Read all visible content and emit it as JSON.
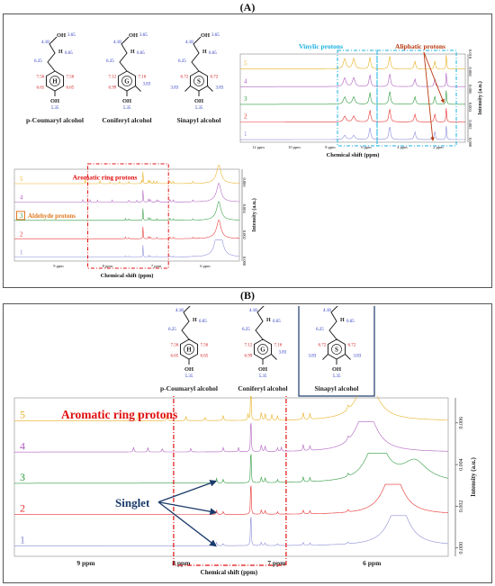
{
  "panel_a": {
    "label": "(A)",
    "structures": [
      {
        "name": "p-Coumaryl alcohol",
        "ring_letter": "H",
        "oh_shift": "5.35",
        "h_ch2": "4.18",
        "oh_alc": "3.65",
        "h_vinyl1": "6.25",
        "h_vinyl2": "6.65",
        "ring_left_top": "7.56",
        "ring_right_top": "7.56",
        "ring_left_bottom": "6.65",
        "ring_right_bottom": "6.65"
      },
      {
        "name": "Coniferyl alcohol",
        "ring_letter": "G",
        "oh_shift": "5.35",
        "h_ch2": "4.18",
        "oh_alc": "3.65",
        "h_vinyl1": "6.25",
        "h_vinyl2": "6.65",
        "ring_left_top": "7.12",
        "ring_right_top": "7.16",
        "ring_left_bottom": "6.99",
        "ome": "3.83"
      },
      {
        "name": "Sinapyl alcohol",
        "ring_letter": "S",
        "oh_shift": "5.35",
        "h_ch2": "4.18",
        "oh_alc": "3.65",
        "h_vinyl1": "6.25",
        "h_vinyl2": "6.65",
        "ring_left_top": "6.72",
        "ring_right_top": "6.72",
        "ome_left": "3.83",
        "ome_right": "3.83"
      }
    ],
    "top_chart": {
      "ylabel": "Intensity (a.u.)",
      "xlabel": "Chemical shift (ppm)",
      "annotation_vinylic": "Vinylic protons",
      "annotation_aliphatic": "Aliphatic protons",
      "ytick_labels": [
        "0.000",
        "0.002",
        "0.004",
        "0.006",
        "0.008",
        "0.010"
      ]
    },
    "bottom_chart": {
      "ylabel": "Intensity (a.u.)",
      "xlabel": "Chemical shift (ppm)",
      "annotation_aromatic": "Aromatic ring protons",
      "annotation_aldehyde": "Aldehyde protons",
      "ytick_labels": [
        "0.000",
        "0.002",
        "0.004",
        "0.006"
      ]
    }
  },
  "panel_b": {
    "label": "(B)",
    "annotation_aromatic": "Aromatic ring protons",
    "annotation_singlet": "Singlet"
  },
  "colors": {
    "trace_1": "#8c8cd8",
    "trace_2": "#e83030",
    "trace_3": "#2e9a3e",
    "trace_4": "#b060c0",
    "trace_5": "#e8b020",
    "red_annot": "#e01010",
    "orange_annot": "#e07820",
    "cyan_annot": "#1ab0e0",
    "aliphatic_annot": "#b83a10",
    "navy": "#1a3a6a",
    "blue_shift": "#2030c0",
    "red_shift": "#d02020"
  },
  "chart_data": [
    {
      "type": "line",
      "panel": "A-top",
      "xlabel": "Chemical shift (ppm)",
      "ylabel": "Intensity (a.u.)",
      "x_tick_labels": [
        "12 ppm",
        "10 ppm",
        "8 ppm",
        "6 ppm",
        "4 ppm",
        "2 ppm"
      ],
      "x_ticks": [
        12,
        10,
        8,
        6,
        4,
        2
      ],
      "xlim": [
        13,
        0.5
      ],
      "ylim": [
        0,
        0.01
      ],
      "y_ticks": [
        0,
        0.002,
        0.004,
        0.006,
        0.008,
        0.01
      ],
      "series": [
        {
          "name": "1",
          "offset": 0.0
        },
        {
          "name": "2",
          "offset": 0.002
        },
        {
          "name": "3",
          "offset": 0.004
        },
        {
          "name": "4",
          "offset": 0.006
        },
        {
          "name": "5",
          "offset": 0.008
        }
      ]
    },
    {
      "type": "line",
      "panel": "A-bottom",
      "xlabel": "Chemical shift (ppm)",
      "ylabel": "Intensity (a.u.)",
      "x_tick_labels": [
        "9 ppm",
        "8 ppm",
        "7 ppm",
        "6 ppm"
      ],
      "x_ticks": [
        9,
        8,
        7,
        6
      ],
      "xlim": [
        9.9,
        5.3
      ],
      "ylim": [
        0,
        0.007
      ],
      "y_ticks": [
        0,
        0.002,
        0.004,
        0.006
      ],
      "series": [
        {
          "name": "1",
          "offset": 0.0
        },
        {
          "name": "2",
          "offset": 0.0014
        },
        {
          "name": "3",
          "offset": 0.0028
        },
        {
          "name": "4",
          "offset": 0.0042
        },
        {
          "name": "5",
          "offset": 0.0056
        }
      ]
    },
    {
      "type": "line",
      "panel": "B",
      "xlabel": "Chemical shift (ppm)",
      "ylabel": "Intensity (a.u.)",
      "x_tick_labels": [
        "9 ppm",
        "8 ppm",
        "7 ppm",
        "6 ppm"
      ],
      "x_ticks": [
        9,
        8,
        7,
        6
      ],
      "xlim": [
        9.75,
        5.2
      ],
      "ylim": [
        -0.0004,
        0.0072
      ],
      "y_ticks": [
        0,
        0.002,
        0.004,
        0.006
      ],
      "y_tick_labels": [
        "0.000",
        "0.002",
        "0.004",
        "0.006"
      ],
      "series": [
        {
          "name": "1",
          "offset": 0.0
        },
        {
          "name": "2",
          "offset": 0.0015
        },
        {
          "name": "3",
          "offset": 0.003
        },
        {
          "name": "4",
          "offset": 0.0045
        },
        {
          "name": "5",
          "offset": 0.006
        }
      ]
    }
  ]
}
